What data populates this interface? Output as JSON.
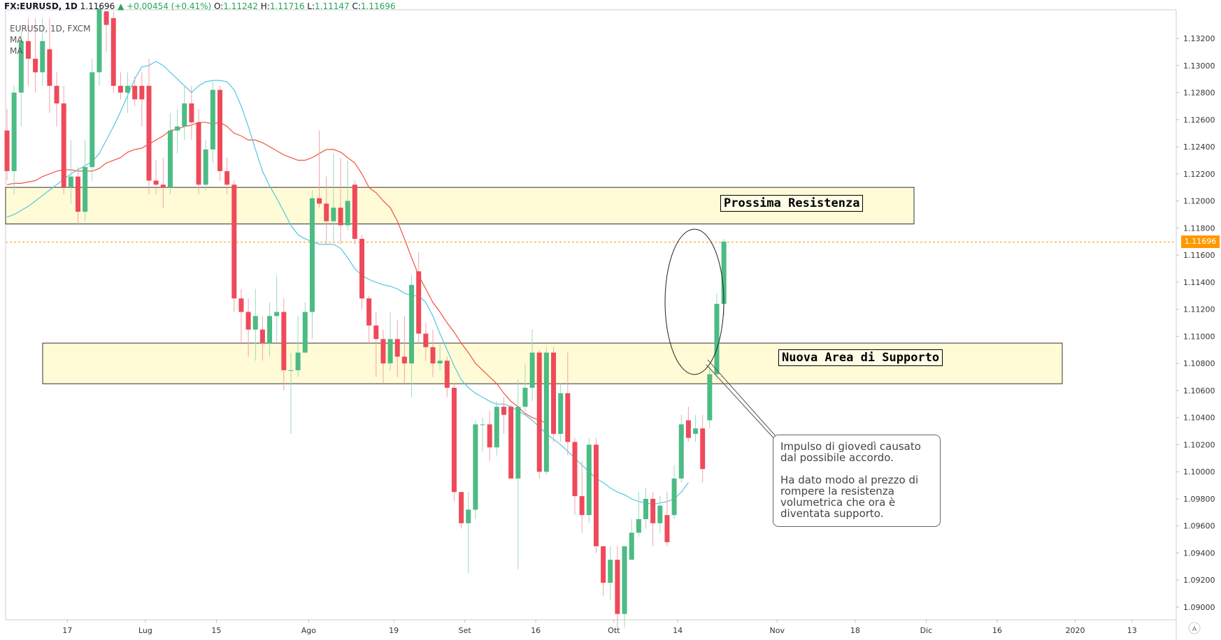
{
  "header": {
    "symbol": "FX:EURUSD, 1D",
    "last": "1.11696",
    "change": "+0.00454 (+0.41%)",
    "o_label": "O:",
    "o": "1.11242",
    "h_label": "H:",
    "h": "1.11716",
    "l_label": "L:",
    "l": "1.11147",
    "c_label": "C:",
    "c": "1.11696"
  },
  "legend": {
    "title": "EURUSD, 1D, FXCM",
    "ma1": "MA",
    "ma2": "MA"
  },
  "annotations": {
    "resistance": "Prossima Resistenza",
    "support": "Nuova Area di Supporto",
    "callout_p1": "Impulso di giovedì causato dal possibile accordo.",
    "callout_p2": "Ha dato modo al prezzo di rompere la resistenza volumetrica che ora è diventata supporto."
  },
  "price_tag": "1.11696",
  "chart_data": {
    "type": "candlestick",
    "title": "",
    "ylim": [
      1.0885,
      1.1335
    ],
    "yticks": [
      1.09,
      1.092,
      1.094,
      1.096,
      1.098,
      1.1,
      1.102,
      1.104,
      1.106,
      1.108,
      1.11,
      1.112,
      1.114,
      1.116,
      1.118,
      1.12,
      1.122,
      1.124,
      1.126,
      1.128,
      1.13,
      1.132
    ],
    "xticks": [
      {
        "label": "17",
        "i": 7.5
      },
      {
        "label": "Lug",
        "i": 18.5
      },
      {
        "label": "15",
        "i": 28.5
      },
      {
        "label": "Ago",
        "i": 41.5
      },
      {
        "label": "19",
        "i": 53.5
      },
      {
        "label": "Set",
        "i": 63.5
      },
      {
        "label": "16",
        "i": 73.5
      },
      {
        "label": "Ott",
        "i": 84.5
      },
      {
        "label": "14",
        "i": 93.5
      },
      {
        "label": "Nov",
        "i": 107.5
      },
      {
        "label": "18",
        "i": 118.5
      },
      {
        "label": "Dic",
        "i": 128.5
      },
      {
        "label": "16",
        "i": 138.5
      },
      {
        "label": "2020",
        "i": 149.5
      },
      {
        "label": "13",
        "i": 157.5
      }
    ],
    "candles": [
      [
        1.1252,
        1.1222,
        1.1215,
        1.1268
      ],
      [
        1.1222,
        1.128,
        1.1205,
        1.1285
      ],
      [
        1.128,
        1.1318,
        1.1255,
        1.1325
      ],
      [
        1.1318,
        1.1305,
        1.1285,
        1.1335
      ],
      [
        1.1305,
        1.1295,
        1.128,
        1.1335
      ],
      [
        1.1295,
        1.1318,
        1.1285,
        1.1335
      ],
      [
        1.1312,
        1.1285,
        1.1265,
        1.1335
      ],
      [
        1.1285,
        1.1272,
        1.1255,
        1.1295
      ],
      [
        1.1272,
        1.121,
        1.1205,
        1.1285
      ],
      [
        1.121,
        1.1218,
        1.1198,
        1.1245
      ],
      [
        1.1218,
        1.1192,
        1.1182,
        1.1225
      ],
      [
        1.1192,
        1.1225,
        1.1185,
        1.1245
      ],
      [
        1.1225,
        1.1295,
        1.1215,
        1.1305
      ],
      [
        1.1295,
        1.1342,
        1.1285,
        1.1342
      ],
      [
        1.134,
        1.133,
        1.131,
        1.134
      ],
      [
        1.1335,
        1.1285,
        1.128,
        1.134
      ],
      [
        1.1285,
        1.128,
        1.1275,
        1.1295
      ],
      [
        1.128,
        1.1285,
        1.1265,
        1.1295
      ],
      [
        1.1285,
        1.1275,
        1.127,
        1.1292
      ],
      [
        1.1285,
        1.1275,
        1.1255,
        1.1295
      ],
      [
        1.1285,
        1.1215,
        1.1205,
        1.1305
      ],
      [
        1.1215,
        1.1212,
        1.1205,
        1.123
      ],
      [
        1.1212,
        1.121,
        1.1195,
        1.1232
      ],
      [
        1.121,
        1.1252,
        1.1205,
        1.1265
      ],
      [
        1.1252,
        1.1255,
        1.1235,
        1.1268
      ],
      [
        1.1255,
        1.1272,
        1.1245,
        1.1285
      ],
      [
        1.1272,
        1.1258,
        1.1245,
        1.1285
      ],
      [
        1.1258,
        1.1212,
        1.1205,
        1.1268
      ],
      [
        1.1212,
        1.1238,
        1.1208,
        1.1245
      ],
      [
        1.1238,
        1.1282,
        1.1228,
        1.1288
      ],
      [
        1.1282,
        1.1222,
        1.1215,
        1.1285
      ],
      [
        1.1222,
        1.1212,
        1.1205,
        1.1232
      ],
      [
        1.1212,
        1.1128,
        1.1118,
        1.1215
      ],
      [
        1.1128,
        1.1118,
        1.1095,
        1.1135
      ],
      [
        1.1118,
        1.1105,
        1.1085,
        1.1128
      ],
      [
        1.1105,
        1.1115,
        1.1082,
        1.1135
      ],
      [
        1.1105,
        1.1095,
        1.1082,
        1.1115
      ],
      [
        1.1095,
        1.1115,
        1.1085,
        1.1125
      ],
      [
        1.1115,
        1.1118,
        1.1095,
        1.1145
      ],
      [
        1.1118,
        1.1075,
        1.106,
        1.1128
      ],
      [
        1.1075,
        1.1075,
        1.1028,
        1.1088
      ],
      [
        1.1075,
        1.1088,
        1.107,
        1.1115
      ],
      [
        1.1088,
        1.1118,
        1.1088,
        1.1125
      ],
      [
        1.1118,
        1.1202,
        1.1098,
        1.1208
      ],
      [
        1.1202,
        1.1198,
        1.1195,
        1.1252
      ],
      [
        1.1198,
        1.1185,
        1.1168,
        1.1218
      ],
      [
        1.1185,
        1.1195,
        1.117,
        1.1235
      ],
      [
        1.1195,
        1.1182,
        1.1168,
        1.1232
      ],
      [
        1.1182,
        1.12,
        1.1178,
        1.123
      ],
      [
        1.1212,
        1.1172,
        1.1168,
        1.1215
      ],
      [
        1.1172,
        1.1128,
        1.112,
        1.1175
      ],
      [
        1.1128,
        1.1108,
        1.1095,
        1.113
      ],
      [
        1.1108,
        1.1098,
        1.107,
        1.1118
      ],
      [
        1.1098,
        1.108,
        1.1065,
        1.1105
      ],
      [
        1.108,
        1.1098,
        1.1075,
        1.1118
      ],
      [
        1.1098,
        1.1085,
        1.107,
        1.1112
      ],
      [
        1.1085,
        1.108,
        1.1065,
        1.1115
      ],
      [
        1.108,
        1.1138,
        1.1055,
        1.1145
      ],
      [
        1.1148,
        1.1102,
        1.1095,
        1.1162
      ],
      [
        1.1102,
        1.1092,
        1.1082,
        1.111
      ],
      [
        1.1092,
        1.108,
        1.107,
        1.1105
      ],
      [
        1.108,
        1.1082,
        1.1075,
        1.1095
      ],
      [
        1.1082,
        1.1062,
        1.1055,
        1.1085
      ],
      [
        1.1062,
        1.0985,
        1.0978,
        1.1065
      ],
      [
        1.0985,
        1.0962,
        1.0958,
        1.0985
      ],
      [
        1.0962,
        1.0972,
        1.0925,
        1.0985
      ],
      [
        1.0972,
        1.1035,
        1.0965,
        1.1038
      ],
      [
        1.1035,
        1.1035,
        1.1015,
        1.104
      ],
      [
        1.1035,
        1.1018,
        1.1008,
        1.1045
      ],
      [
        1.1018,
        1.1048,
        1.1012,
        1.1052
      ],
      [
        1.1048,
        1.1042,
        1.1028,
        1.1055
      ],
      [
        1.1048,
        1.0995,
        1.0995,
        1.105
      ],
      [
        1.0995,
        1.1048,
        1.0928,
        1.1068
      ],
      [
        1.1048,
        1.1062,
        1.1045,
        1.108
      ],
      [
        1.1062,
        1.1088,
        1.1052,
        1.1105
      ],
      [
        1.1088,
        1.1,
        1.0995,
        1.109
      ],
      [
        1.1,
        1.1088,
        1.0998,
        1.1092
      ],
      [
        1.1088,
        1.1028,
        1.1022,
        1.1092
      ],
      [
        1.1028,
        1.1058,
        1.1022,
        1.1065
      ],
      [
        1.1058,
        1.1022,
        1.1012,
        1.1088
      ],
      [
        1.1022,
        1.0982,
        1.0968,
        1.1025
      ],
      [
        1.0982,
        1.0968,
        1.0955,
        1.1008
      ],
      [
        1.0968,
        1.102,
        1.0962,
        1.1025
      ],
      [
        1.102,
        1.0945,
        1.094,
        1.1025
      ],
      [
        1.0945,
        1.0918,
        1.0908,
        1.0945
      ],
      [
        1.0918,
        1.0935,
        1.0905,
        1.0945
      ],
      [
        1.0935,
        1.0895,
        1.0885,
        1.0945
      ],
      [
        1.0895,
        1.0945,
        1.0885,
        1.0945
      ],
      [
        1.0935,
        1.0955,
        1.0935,
        1.0965
      ],
      [
        1.0955,
        1.0965,
        1.0952,
        1.0985
      ],
      [
        1.0965,
        1.098,
        1.0958,
        1.0988
      ],
      [
        1.098,
        1.0962,
        1.0945,
        1.0985
      ],
      [
        1.0962,
        1.0975,
        1.0955,
        1.0982
      ],
      [
        1.0968,
        1.0948,
        1.0945,
        1.0985
      ],
      [
        1.0968,
        1.0995,
        1.0965,
        1.1005
      ],
      [
        1.0995,
        1.1035,
        1.0992,
        1.1042
      ],
      [
        1.1038,
        1.1025,
        1.1022,
        1.1048
      ],
      [
        1.1028,
        1.1032,
        1.1022,
        1.1042
      ],
      [
        1.1032,
        1.1002,
        1.0992,
        1.1042
      ],
      [
        1.1038,
        1.1072,
        1.1032,
        1.1078
      ],
      [
        1.1072,
        1.1124,
        1.1068,
        1.1132
      ],
      [
        1.1124,
        1.117,
        1.1115,
        1.1172
      ]
    ],
    "start_index": -1,
    "ma_fast": [
      [
        -1,
        1.1188
      ],
      [
        0,
        1.119
      ],
      [
        1,
        1.1193
      ],
      [
        2,
        1.1196
      ],
      [
        3,
        1.12
      ],
      [
        4,
        1.1204
      ],
      [
        5,
        1.1208
      ],
      [
        6,
        1.1212
      ],
      [
        7,
        1.1216
      ],
      [
        8,
        1.122
      ],
      [
        9,
        1.1223
      ],
      [
        10,
        1.1226
      ],
      [
        11,
        1.1229
      ],
      [
        12,
        1.1235
      ],
      [
        13,
        1.1245
      ],
      [
        14,
        1.1255
      ],
      [
        15,
        1.1266
      ],
      [
        16,
        1.1278
      ],
      [
        17,
        1.129
      ],
      [
        18,
        1.1299
      ],
      [
        19,
        1.13
      ],
      [
        20,
        1.1303
      ],
      [
        21,
        1.13
      ],
      [
        22,
        1.1295
      ],
      [
        23,
        1.129
      ],
      [
        24,
        1.1285
      ],
      [
        25,
        1.128
      ],
      [
        26,
        1.1285
      ],
      [
        27,
        1.1288
      ],
      [
        28,
        1.1289
      ],
      [
        29,
        1.1289
      ],
      [
        30,
        1.1288
      ],
      [
        31,
        1.1282
      ],
      [
        32,
        1.127
      ],
      [
        33,
        1.1255
      ],
      [
        34,
        1.1238
      ],
      [
        35,
        1.1222
      ],
      [
        36,
        1.1211
      ],
      [
        37,
        1.1202
      ],
      [
        38,
        1.1192
      ],
      [
        39,
        1.1182
      ],
      [
        40,
        1.1175
      ],
      [
        41,
        1.1172
      ],
      [
        42,
        1.117
      ],
      [
        43,
        1.1168
      ],
      [
        44,
        1.1168
      ],
      [
        45,
        1.1168
      ],
      [
        46,
        1.1165
      ],
      [
        47,
        1.1158
      ],
      [
        48,
        1.115
      ],
      [
        49,
        1.1145
      ],
      [
        50,
        1.1142
      ],
      [
        51,
        1.114
      ],
      [
        52,
        1.1138
      ],
      [
        53,
        1.1137
      ],
      [
        54,
        1.1135
      ],
      [
        55,
        1.1132
      ],
      [
        56,
        1.113
      ],
      [
        57,
        1.113
      ],
      [
        58,
        1.1125
      ],
      [
        59,
        1.1115
      ],
      [
        60,
        1.1102
      ],
      [
        61,
        1.109
      ],
      [
        62,
        1.1078
      ],
      [
        63,
        1.1068
      ],
      [
        64,
        1.1062
      ],
      [
        65,
        1.1058
      ],
      [
        66,
        1.1055
      ],
      [
        67,
        1.1052
      ],
      [
        68,
        1.105
      ],
      [
        69,
        1.105
      ],
      [
        70,
        1.1048
      ],
      [
        71,
        1.1045
      ],
      [
        72,
        1.1042
      ],
      [
        73,
        1.1038
      ],
      [
        74,
        1.1033
      ],
      [
        75,
        1.1028
      ],
      [
        76,
        1.1024
      ],
      [
        77,
        1.102
      ],
      [
        78,
        1.1015
      ],
      [
        79,
        1.101
      ],
      [
        80,
        1.1005
      ],
      [
        81,
        1.1
      ],
      [
        82,
        1.0995
      ],
      [
        83,
        1.0992
      ],
      [
        84,
        1.0988
      ],
      [
        85,
        1.0985
      ],
      [
        86,
        1.0983
      ],
      [
        87,
        1.098
      ],
      [
        88,
        1.0978
      ],
      [
        89,
        1.0977
      ],
      [
        90,
        1.0976
      ],
      [
        91,
        1.0977
      ],
      [
        92,
        1.0978
      ],
      [
        93,
        1.098
      ],
      [
        94,
        1.0985
      ],
      [
        95,
        1.0992
      ]
    ],
    "ma_slow": [
      [
        -1,
        1.1212
      ],
      [
        0,
        1.1213
      ],
      [
        1,
        1.1213
      ],
      [
        2,
        1.1214
      ],
      [
        3,
        1.1215
      ],
      [
        4,
        1.1218
      ],
      [
        5,
        1.122
      ],
      [
        6,
        1.1222
      ],
      [
        7,
        1.1223
      ],
      [
        8,
        1.1223
      ],
      [
        9,
        1.1222
      ],
      [
        10,
        1.1222
      ],
      [
        11,
        1.1222
      ],
      [
        12,
        1.1224
      ],
      [
        13,
        1.1228
      ],
      [
        14,
        1.123
      ],
      [
        15,
        1.1232
      ],
      [
        16,
        1.1236
      ],
      [
        17,
        1.1238
      ],
      [
        18,
        1.1239
      ],
      [
        19,
        1.1242
      ],
      [
        20,
        1.1245
      ],
      [
        21,
        1.1248
      ],
      [
        22,
        1.1252
      ],
      [
        23,
        1.1253
      ],
      [
        24,
        1.1255
      ],
      [
        25,
        1.1256
      ],
      [
        26,
        1.1258
      ],
      [
        27,
        1.1258
      ],
      [
        28,
        1.1257
      ],
      [
        29,
        1.1258
      ],
      [
        30,
        1.1255
      ],
      [
        31,
        1.125
      ],
      [
        32,
        1.1248
      ],
      [
        33,
        1.1245
      ],
      [
        34,
        1.1245
      ],
      [
        35,
        1.1243
      ],
      [
        36,
        1.124
      ],
      [
        37,
        1.1237
      ],
      [
        38,
        1.1234
      ],
      [
        39,
        1.1232
      ],
      [
        40,
        1.123
      ],
      [
        41,
        1.123
      ],
      [
        42,
        1.1232
      ],
      [
        43,
        1.1235
      ],
      [
        44,
        1.1238
      ],
      [
        45,
        1.1238
      ],
      [
        46,
        1.1236
      ],
      [
        47,
        1.1232
      ],
      [
        48,
        1.1228
      ],
      [
        49,
        1.122
      ],
      [
        50,
        1.121
      ],
      [
        51,
        1.1206
      ],
      [
        52,
        1.12
      ],
      [
        53,
        1.1195
      ],
      [
        54,
        1.1185
      ],
      [
        55,
        1.1172
      ],
      [
        56,
        1.1158
      ],
      [
        57,
        1.1145
      ],
      [
        58,
        1.1135
      ],
      [
        59,
        1.1125
      ],
      [
        60,
        1.1118
      ],
      [
        61,
        1.111
      ],
      [
        62,
        1.1103
      ],
      [
        63,
        1.1095
      ],
      [
        64,
        1.1088
      ],
      [
        65,
        1.108
      ],
      [
        66,
        1.1075
      ],
      [
        67,
        1.107
      ],
      [
        68,
        1.1065
      ],
      [
        69,
        1.1058
      ],
      [
        70,
        1.1052
      ],
      [
        71,
        1.1048
      ],
      [
        72,
        1.1043
      ],
      [
        73,
        1.104
      ],
      [
        74,
        1.1038
      ],
      [
        75,
        1.1036
      ]
    ],
    "resistance_zone": [
      1.1183,
      1.121
    ],
    "support_zone": [
      1.1065,
      1.1095
    ],
    "current_price": 1.11696
  }
}
